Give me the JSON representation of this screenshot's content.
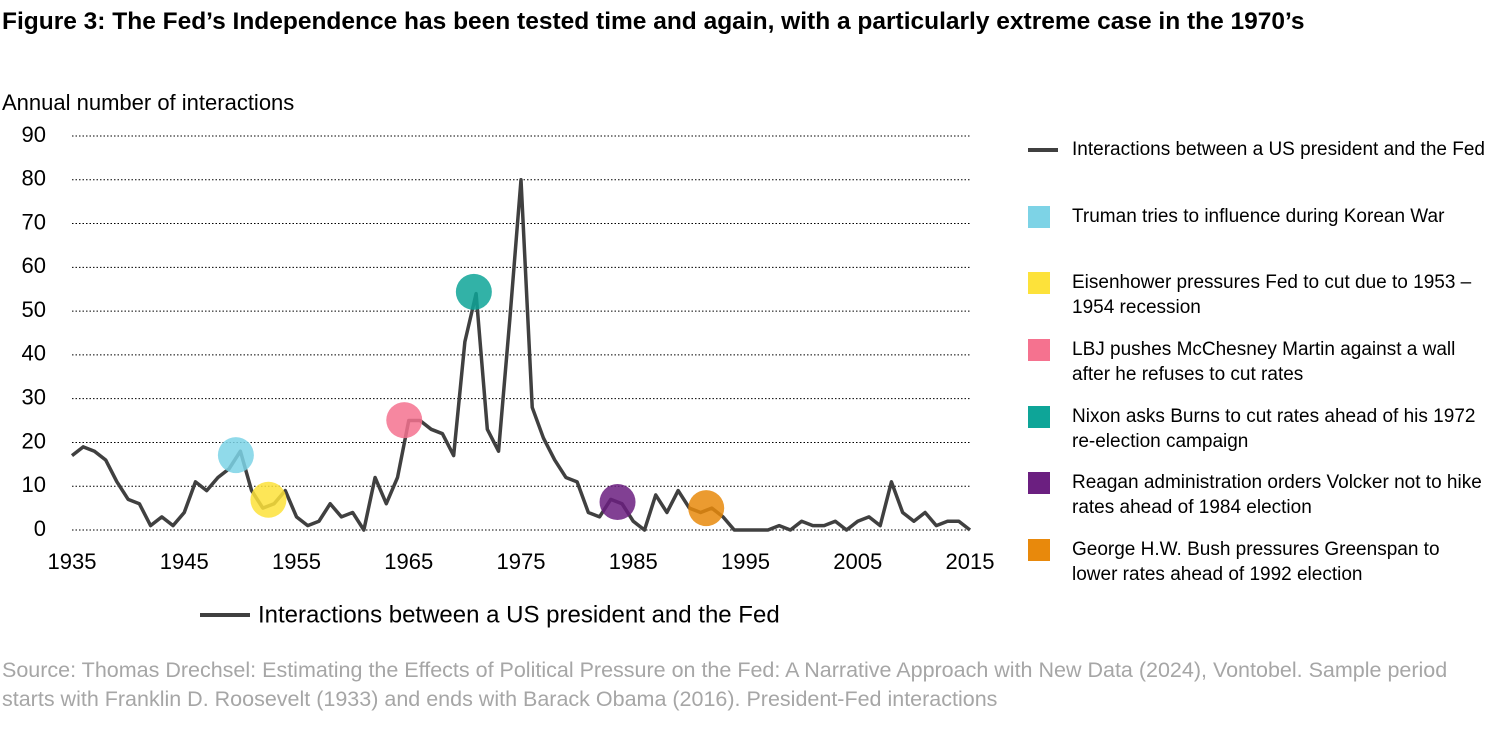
{
  "chart_data": {
    "type": "line",
    "title": "Figure 3: The Fed’s Independence has been tested time and again, with a particularly extreme case in the 1970’s",
    "y_label": "Annual number of interactions",
    "source": "Source: Thomas Drechsel: Estimating the Effects of Political Pressure on the Fed: A Narrative Approach with New Data (2024), Vontobel. Sample period starts with Franklin D. Roosevelt (1933) and ends with Barack Obama (2016). President-Fed interactions",
    "x": [
      1935,
      1936,
      1937,
      1938,
      1939,
      1940,
      1941,
      1942,
      1943,
      1944,
      1945,
      1946,
      1947,
      1948,
      1949,
      1950,
      1951,
      1952,
      1953,
      1954,
      1955,
      1956,
      1957,
      1958,
      1959,
      1960,
      1961,
      1962,
      1963,
      1964,
      1965,
      1966,
      1967,
      1968,
      1969,
      1970,
      1971,
      1972,
      1973,
      1974,
      1975,
      1976,
      1977,
      1978,
      1979,
      1980,
      1981,
      1982,
      1983,
      1984,
      1985,
      1986,
      1987,
      1988,
      1989,
      1990,
      1991,
      1992,
      1993,
      1994,
      1995,
      1996,
      1997,
      1998,
      1999,
      2000,
      2001,
      2002,
      2003,
      2004,
      2005,
      2006,
      2007,
      2008,
      2009,
      2010,
      2011,
      2012,
      2013,
      2014,
      2015
    ],
    "series": [
      {
        "name": "Interactions between a US president and the Fed",
        "color": "#404040",
        "values": [
          17,
          19,
          18,
          16,
          11,
          7,
          6,
          1,
          3,
          1,
          4,
          11,
          9,
          12,
          14,
          18,
          9,
          5,
          6,
          9,
          3,
          1,
          2,
          6,
          3,
          4,
          0,
          12,
          6,
          12,
          25,
          25,
          23,
          22,
          17,
          43,
          54,
          23,
          18,
          48,
          80,
          28,
          21,
          16,
          12,
          11,
          4,
          3,
          7,
          6,
          2,
          0,
          8,
          4,
          9,
          5,
          4,
          5,
          3,
          0,
          0,
          0,
          0,
          1,
          0,
          2,
          1,
          1,
          2,
          0,
          2,
          3,
          1,
          11,
          4,
          2,
          4,
          1,
          2,
          2,
          0
        ]
      }
    ],
    "highlights": [
      {
        "name": "Truman tries to influence during Korean War",
        "color": "#7dd3e6",
        "x": 1949.6,
        "y": 17.1
      },
      {
        "name": "Eisenhower pressures Fed to cut due to 1953 – 1954 recession",
        "color": "#fde23a",
        "x": 1952.5,
        "y": 6.9
      },
      {
        "name": "LBJ pushes McChesney Martin against a wall after he refuses to cut rates",
        "color": "#f5728f",
        "x": 1964.6,
        "y": 25.1
      },
      {
        "name": "Nixon asks Burns to cut rates ahead of his 1972 re-election campaign",
        "color": "#0ea598",
        "x": 1970.8,
        "y": 54.4
      },
      {
        "name": "Reagan administration orders Volcker not to hike rates ahead of 1984 election",
        "color": "#6b1f80",
        "x": 1983.6,
        "y": 6.4
      },
      {
        "name": "George H.W. Bush pressures Greenspan to lower rates ahead of 1992 election",
        "color": "#e8890c",
        "x": 1991.5,
        "y": 5.0
      }
    ],
    "xlim": [
      1935,
      2015
    ],
    "xticks": [
      1935,
      1945,
      1955,
      1965,
      1975,
      1985,
      1995,
      2005,
      2015
    ],
    "ylim": [
      0,
      90
    ],
    "yticks": [
      0,
      10,
      20,
      30,
      40,
      50,
      60,
      70,
      80,
      90
    ],
    "grid": true
  }
}
